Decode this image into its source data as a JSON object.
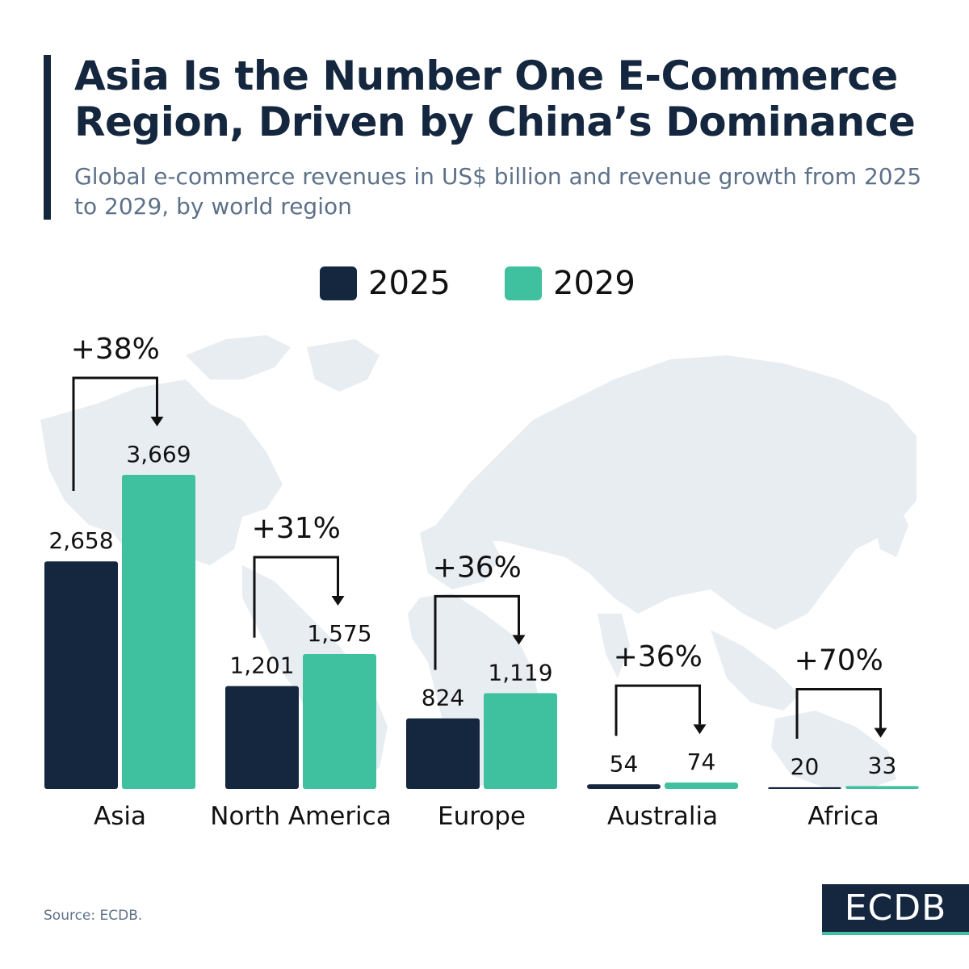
{
  "header": {
    "title": "Asia Is the Number One E-Commerce Region, Driven by China’s Dominance",
    "subtitle": "Global e-commerce revenues in US$ billion and revenue growth from 2025 to 2029, by world region"
  },
  "legend": [
    {
      "label": "2025",
      "color": "#14273f"
    },
    {
      "label": "2029",
      "color": "#3fc19f"
    }
  ],
  "chart_data": {
    "type": "bar",
    "categories": [
      "Asia",
      "North America",
      "Europe",
      "Australia",
      "Africa"
    ],
    "series": [
      {
        "name": "2025",
        "values": [
          2658,
          1201,
          824,
          54,
          20
        ],
        "labels": [
          "2,658",
          "1,201",
          "824",
          "54",
          "20"
        ],
        "color": "#14273f"
      },
      {
        "name": "2029",
        "values": [
          3669,
          1575,
          1119,
          74,
          33
        ],
        "labels": [
          "3,669",
          "1,575",
          "1,119",
          "74",
          "33"
        ],
        "color": "#3fc19f"
      }
    ],
    "growth_labels": [
      "+38%",
      "+31%",
      "+36%",
      "+36%",
      "+70%"
    ],
    "ylim": [
      0,
      3669
    ],
    "grid": false,
    "legend_position": "top-center"
  },
  "footer": {
    "source": "Source: ECDB.",
    "logo_text": "ECDB"
  }
}
